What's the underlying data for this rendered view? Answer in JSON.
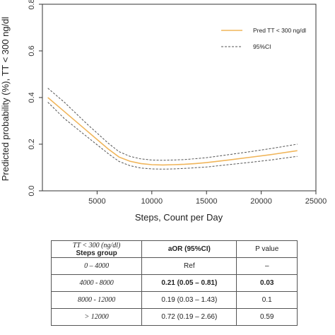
{
  "chart_data": {
    "type": "line",
    "xlabel": "Steps, Count per Day",
    "ylabel": "Predicted probability (%), TT < 300 ng/dl",
    "xlim": [
      0,
      25000
    ],
    "ylim": [
      0,
      0.8
    ],
    "x_ticks": [
      5000,
      10000,
      15000,
      20000,
      25000
    ],
    "x_tick_labels": [
      "5000",
      "10000",
      "15000",
      "20000",
      "25000"
    ],
    "y_ticks": [
      0.0,
      0.2,
      0.4,
      0.6,
      0.8
    ],
    "y_tick_labels": [
      "0.0",
      "0.2",
      "0.4",
      "0.6",
      "0.8"
    ],
    "grid": false,
    "legend_position": "top-right",
    "series": [
      {
        "name": "Pred TT < 300 ng/dl",
        "style": "solid",
        "color": "#f0b55a",
        "x": [
          500,
          2000,
          4000,
          6000,
          7000,
          8000,
          9000,
          10000,
          11000,
          12000,
          13000,
          14000,
          15000,
          17000,
          19000,
          21000,
          23300
        ],
        "y": [
          0.4,
          0.34,
          0.26,
          0.18,
          0.145,
          0.127,
          0.117,
          0.112,
          0.111,
          0.112,
          0.114,
          0.117,
          0.121,
          0.132,
          0.144,
          0.156,
          0.172
        ]
      },
      {
        "name": "95%CI",
        "style": "dashed",
        "color": "#555555",
        "x": [
          500,
          2000,
          4000,
          6000,
          7000,
          8000,
          9000,
          10000,
          11000,
          12000,
          13000,
          14000,
          15000,
          17000,
          19000,
          21000,
          23300
        ],
        "y": [
          0.44,
          0.38,
          0.29,
          0.205,
          0.168,
          0.148,
          0.137,
          0.132,
          0.131,
          0.132,
          0.134,
          0.138,
          0.142,
          0.155,
          0.168,
          0.182,
          0.2
        ]
      },
      {
        "name": "95%CI",
        "style": "dashed",
        "color": "#555555",
        "x": [
          500,
          2000,
          4000,
          6000,
          7000,
          8000,
          9000,
          10000,
          11000,
          12000,
          13000,
          14000,
          15000,
          17000,
          19000,
          21000,
          23300
        ],
        "y": [
          0.38,
          0.31,
          0.235,
          0.16,
          0.126,
          0.108,
          0.098,
          0.094,
          0.093,
          0.094,
          0.096,
          0.099,
          0.102,
          0.112,
          0.122,
          0.133,
          0.148
        ]
      }
    ]
  },
  "legend": [
    {
      "label": "Pred TT < 300 ng/dl",
      "style": "solid",
      "color": "#f0b55a"
    },
    {
      "label": "95%CI",
      "style": "dashed",
      "color": "#555555"
    }
  ],
  "table": {
    "header_top": "TT < 300 (ng/dl)",
    "header_sub": "Steps group",
    "header_mid": "aOR (95%CI)",
    "header_right": "P value",
    "rows": [
      {
        "group": "0 – 4000",
        "aor": "Ref",
        "p": "–",
        "bold": false
      },
      {
        "group": "4000 - 8000",
        "aor": "0.21 (0.05 – 0.81)",
        "p": "0.03",
        "bold": true
      },
      {
        "group": "8000 - 12000",
        "aor": "0.19 (0.03 – 1.43)",
        "p": "0.1",
        "bold": false
      },
      {
        "group": "> 12000",
        "aor": "0.72 (0.19 – 2.66)",
        "p": "0.59",
        "bold": false
      }
    ]
  }
}
